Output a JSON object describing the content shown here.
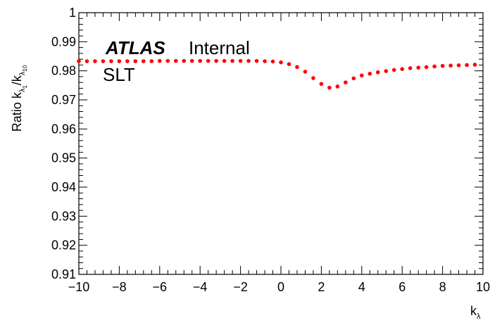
{
  "chart_data": {
    "type": "scatter",
    "experiment": "ATLAS",
    "status": "Internal",
    "channel": "SLT",
    "xlabel": {
      "main": "k",
      "sub": "λ"
    },
    "ylabel": {
      "prefix": "Ratio k",
      "sub1": "λ",
      "sub1b": "1",
      "sep": "/k",
      "sub2": "λ",
      "sub2b": "10"
    },
    "xlim": [
      -10,
      10
    ],
    "ylim": [
      0.91,
      1.0
    ],
    "x_ticks": [
      -10,
      -8,
      -6,
      -4,
      -2,
      0,
      2,
      4,
      6,
      8,
      10
    ],
    "x_tick_labels": [
      "−10",
      "−8",
      "−6",
      "−4",
      "−2",
      "0",
      "2",
      "4",
      "6",
      "8",
      "10"
    ],
    "y_ticks": [
      0.91,
      0.92,
      0.93,
      0.94,
      0.95,
      0.96,
      0.97,
      0.98,
      0.99,
      1.0
    ],
    "y_tick_labels": [
      "0.91",
      "0.92",
      "0.93",
      "0.94",
      "0.95",
      "0.96",
      "0.97",
      "0.98",
      "0.99",
      "1"
    ],
    "marker_color": "#ff0000",
    "series": [
      {
        "x": [
          -10,
          -9.6,
          -9.2,
          -8.8,
          -8.4,
          -8,
          -7.6,
          -7.2,
          -6.8,
          -6.4,
          -6,
          -5.6,
          -5.2,
          -4.8,
          -4.4,
          -4,
          -3.6,
          -3.2,
          -2.8,
          -2.4,
          -2,
          -1.6,
          -1.2,
          -0.8,
          -0.4,
          0,
          0.4,
          0.8,
          1.2,
          1.6,
          2,
          2.4,
          2.8,
          3.2,
          3.6,
          4,
          4.4,
          4.8,
          5.2,
          5.6,
          6,
          6.4,
          6.8,
          7.2,
          7.6,
          8,
          8.4,
          8.8,
          9.2,
          9.6
        ],
        "y": [
          0.9833,
          0.9833,
          0.9833,
          0.9833,
          0.9833,
          0.9833,
          0.9833,
          0.9833,
          0.9833,
          0.9833,
          0.9834,
          0.9834,
          0.9834,
          0.9834,
          0.9834,
          0.9834,
          0.9834,
          0.9834,
          0.9834,
          0.9834,
          0.9834,
          0.9834,
          0.9834,
          0.9833,
          0.9832,
          0.9829,
          0.9823,
          0.9813,
          0.9797,
          0.9775,
          0.9755,
          0.9742,
          0.9746,
          0.976,
          0.9774,
          0.9784,
          0.979,
          0.9795,
          0.9799,
          0.9803,
          0.9806,
          0.9809,
          0.9811,
          0.9813,
          0.9815,
          0.9817,
          0.9818,
          0.9819,
          0.982,
          0.9821
        ]
      }
    ]
  }
}
